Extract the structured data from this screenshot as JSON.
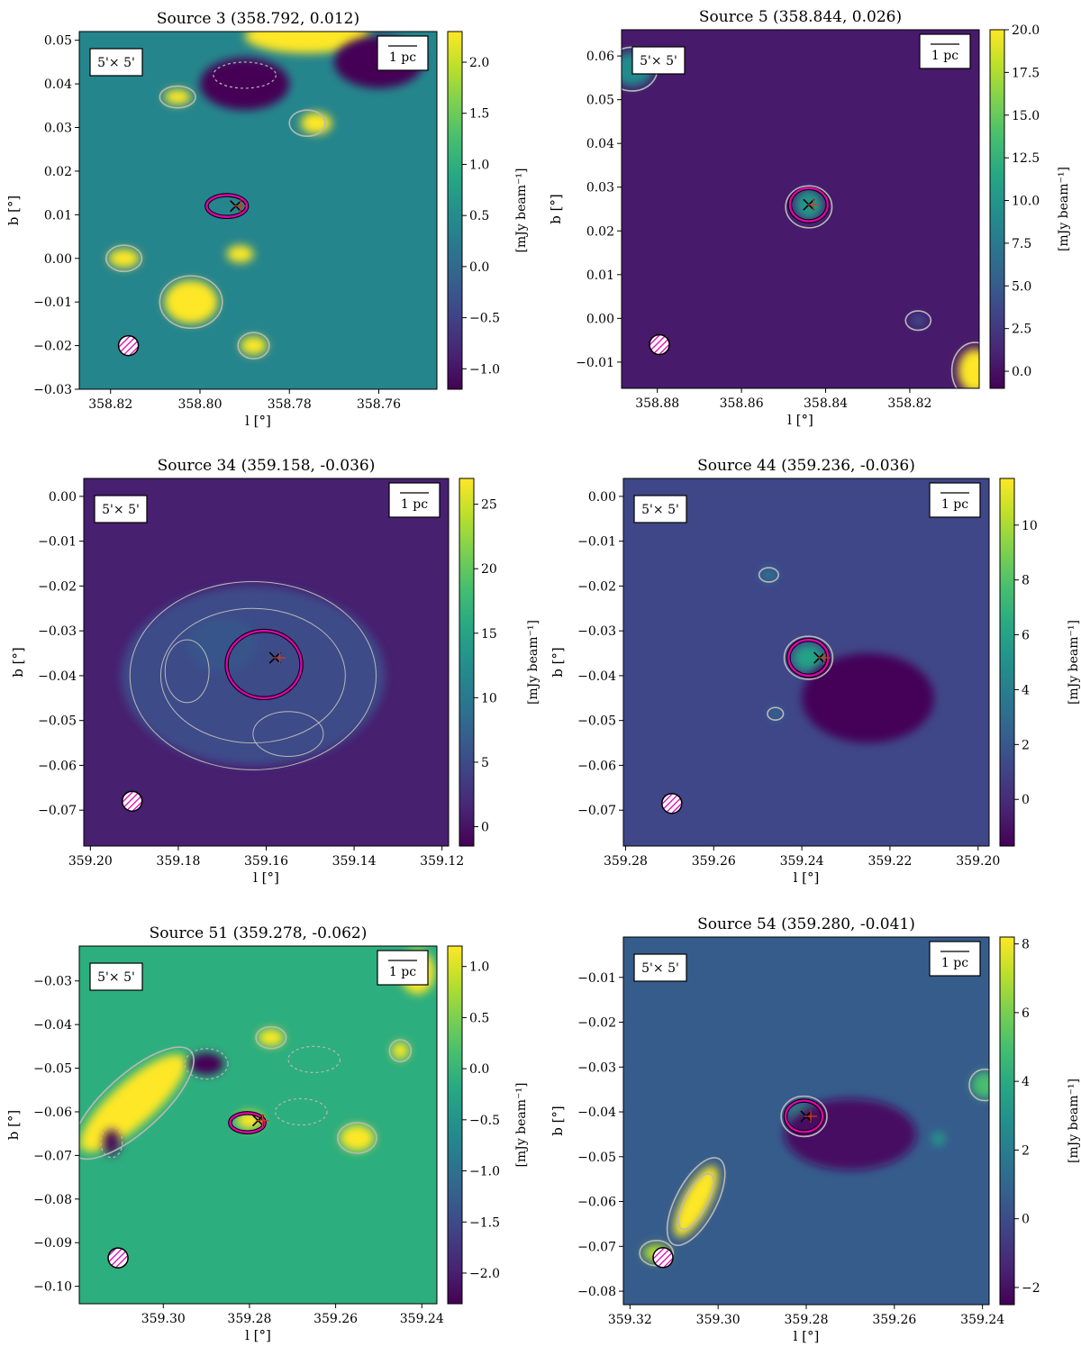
{
  "figure": {
    "colormap": "viridis",
    "contour_color": "#b8b8b8",
    "core_color": "#e000b0",
    "marker_color": "#000000"
  },
  "chart_data": [
    {
      "type": "heatmap",
      "title": "Source 3 (358.792, 0.012)",
      "xlabel": "l [°]",
      "ylabel": "b [°]",
      "xlim": [
        358.827,
        358.747
      ],
      "ylim": [
        -0.03,
        0.052
      ],
      "xticks": [
        "358.82",
        "358.80",
        "358.78",
        "358.76"
      ],
      "xtick_values": [
        358.82,
        358.8,
        358.78,
        358.76
      ],
      "yticks": [
        "0.05",
        "0.04",
        "0.03",
        "0.02",
        "0.01",
        "0.00",
        "−0.01",
        "−0.02",
        "−0.03"
      ],
      "ytick_values": [
        0.05,
        0.04,
        0.03,
        0.02,
        0.01,
        0.0,
        -0.01,
        -0.02,
        -0.03
      ],
      "colorbar": {
        "label": "[mJy beam⁻¹]",
        "range": [
          -1.2,
          2.3
        ],
        "ticks": [
          "−1.0",
          "−0.5",
          "0.0",
          "0.5",
          "1.0",
          "1.5",
          "2.0"
        ],
        "tick_values": [
          -1.0,
          -0.5,
          0.0,
          0.5,
          1.0,
          1.5,
          2.0
        ]
      },
      "background_level": 0.4,
      "field_label": "5'× 5'",
      "scalebar_label": "1 pc",
      "source_position": [
        358.792,
        0.012
      ],
      "blobs": [
        {
          "l": 358.776,
          "b": 0.051,
          "rl": 0.014,
          "rb": 0.004,
          "v": 3.0
        },
        {
          "l": 358.805,
          "b": 0.037,
          "rl": 0.003,
          "rb": 0.0018,
          "v": 2.4
        },
        {
          "l": 358.774,
          "b": 0.031,
          "rl": 0.0035,
          "rb": 0.0025,
          "v": 2.5
        },
        {
          "l": 358.817,
          "b": 0.0,
          "rl": 0.0035,
          "rb": 0.0022,
          "v": 2.4
        },
        {
          "l": 358.791,
          "b": 0.001,
          "rl": 0.003,
          "rb": 0.002,
          "v": 2.3
        },
        {
          "l": 358.802,
          "b": -0.01,
          "rl": 0.006,
          "rb": 0.005,
          "v": 3.2
        },
        {
          "l": 358.788,
          "b": -0.02,
          "rl": 0.003,
          "rb": 0.0022,
          "v": 2.4
        },
        {
          "l": 358.79,
          "b": 0.04,
          "rl": 0.01,
          "rb": 0.006,
          "v": -1.5
        },
        {
          "l": 358.76,
          "b": 0.045,
          "rl": 0.01,
          "rb": 0.006,
          "v": -1.3
        }
      ],
      "contours": [
        {
          "l": 358.794,
          "b": 0.012,
          "rl": 0.0045,
          "rb": 0.0025,
          "style": "core"
        },
        {
          "l": 358.776,
          "b": 0.031,
          "rl": 0.004,
          "rb": 0.003,
          "style": "solid"
        },
        {
          "l": 358.805,
          "b": 0.037,
          "rl": 0.004,
          "rb": 0.0025,
          "style": "solid"
        },
        {
          "l": 358.817,
          "b": 0.0,
          "rl": 0.004,
          "rb": 0.003,
          "style": "solid"
        },
        {
          "l": 358.802,
          "b": -0.01,
          "rl": 0.007,
          "rb": 0.006,
          "style": "solid"
        },
        {
          "l": 358.788,
          "b": -0.02,
          "rl": 0.0035,
          "rb": 0.003,
          "style": "solid"
        },
        {
          "l": 358.79,
          "b": 0.042,
          "rl": 0.007,
          "rb": 0.003,
          "style": "dashed"
        }
      ],
      "beam_position": [
        358.816,
        -0.02
      ]
    },
    {
      "type": "heatmap",
      "title": "Source 5 (358.844, 0.026)",
      "xlabel": "l [°]",
      "ylabel": "b [°]",
      "xlim": [
        358.8885,
        358.8035
      ],
      "ylim": [
        -0.016,
        0.066
      ],
      "xticks": [
        "358.88",
        "358.86",
        "358.84",
        "358.82"
      ],
      "xtick_values": [
        358.88,
        358.86,
        358.84,
        358.82
      ],
      "yticks": [
        "0.06",
        "0.05",
        "0.04",
        "0.03",
        "0.02",
        "0.01",
        "0.00",
        "−0.01"
      ],
      "ytick_values": [
        0.06,
        0.05,
        0.04,
        0.03,
        0.02,
        0.01,
        0.0,
        -0.01
      ],
      "colorbar": {
        "label": "[mJy beam⁻¹]",
        "range": [
          -1.0,
          20.0
        ],
        "ticks": [
          "0.0",
          "2.5",
          "5.0",
          "7.5",
          "10.0",
          "12.5",
          "15.0",
          "17.5",
          "20.0"
        ],
        "tick_values": [
          0.0,
          2.5,
          5.0,
          7.5,
          10.0,
          12.5,
          15.0,
          17.5,
          20.0
        ]
      },
      "background_level": 0.5,
      "field_label": "5'× 5'",
      "scalebar_label": "1 pc",
      "source_position": [
        358.844,
        0.026
      ],
      "blobs": [
        {
          "l": 358.844,
          "b": 0.026,
          "rl": 0.0035,
          "rb": 0.0035,
          "v": 10.0
        },
        {
          "l": 358.886,
          "b": 0.057,
          "rl": 0.005,
          "rb": 0.004,
          "v": 9.0
        },
        {
          "l": 358.8045,
          "b": -0.012,
          "rl": 0.004,
          "rb": 0.005,
          "v": 22.0
        },
        {
          "l": 358.818,
          "b": -0.0005,
          "rl": 0.002,
          "rb": 0.0015,
          "v": 4.0
        }
      ],
      "contours": [
        {
          "l": 358.844,
          "b": 0.026,
          "rl": 0.0045,
          "rb": 0.0038,
          "style": "core"
        },
        {
          "l": 358.844,
          "b": 0.0255,
          "rl": 0.0055,
          "rb": 0.0048,
          "style": "solid"
        },
        {
          "l": 358.818,
          "b": -0.0005,
          "rl": 0.003,
          "rb": 0.0022,
          "style": "solid"
        },
        {
          "l": 358.886,
          "b": 0.057,
          "rl": 0.006,
          "rb": 0.005,
          "style": "solid"
        },
        {
          "l": 358.8045,
          "b": -0.012,
          "rl": 0.0055,
          "rb": 0.0065,
          "style": "solid"
        }
      ],
      "beam_position": [
        358.8795,
        -0.006
      ]
    },
    {
      "type": "heatmap",
      "title": "Source 34 (359.158, -0.036)",
      "xlabel": "l [°]",
      "ylabel": "b [°]",
      "xlim": [
        359.2015,
        359.1185
      ],
      "ylim": [
        -0.078,
        0.004
      ],
      "xticks": [
        "359.20",
        "359.18",
        "359.16",
        "359.14",
        "359.12"
      ],
      "xtick_values": [
        359.2,
        359.18,
        359.16,
        359.14,
        359.12
      ],
      "yticks": [
        "0.00",
        "−0.01",
        "−0.02",
        "−0.03",
        "−0.04",
        "−0.05",
        "−0.06",
        "−0.07"
      ],
      "ytick_values": [
        0.0,
        -0.01,
        -0.02,
        -0.03,
        -0.04,
        -0.05,
        -0.06,
        -0.07
      ],
      "colorbar": {
        "label": "[mJy beam⁻¹]",
        "range": [
          -1.5,
          27.0
        ],
        "ticks": [
          "0",
          "5",
          "10",
          "15",
          "20",
          "25"
        ],
        "tick_values": [
          0,
          5,
          10,
          15,
          20,
          25
        ]
      },
      "background_level": 1.0,
      "field_label": "5'× 5'",
      "scalebar_label": "1 pc",
      "source_position": [
        359.158,
        -0.036
      ],
      "blobs": [
        {
          "l": 359.16,
          "b": -0.037,
          "rl": 0.007,
          "rb": 0.0065,
          "v": 13.0
        },
        {
          "l": 359.163,
          "b": -0.04,
          "rl": 0.03,
          "rb": 0.02,
          "v": 5.0
        },
        {
          "l": 359.17,
          "b": -0.033,
          "rl": 0.008,
          "rb": 0.006,
          "v": 6.0
        }
      ],
      "contours": [
        {
          "l": 359.1605,
          "b": -0.0375,
          "rl": 0.0085,
          "rb": 0.0075,
          "style": "core"
        },
        {
          "l": 359.163,
          "b": -0.04,
          "rl": 0.028,
          "rb": 0.021,
          "style": "thin"
        },
        {
          "l": 359.163,
          "b": -0.04,
          "rl": 0.021,
          "rb": 0.015,
          "style": "thin"
        },
        {
          "l": 359.155,
          "b": -0.053,
          "rl": 0.008,
          "rb": 0.005,
          "style": "thin"
        },
        {
          "l": 359.178,
          "b": -0.039,
          "rl": 0.005,
          "rb": 0.007,
          "style": "thin"
        }
      ],
      "beam_position": [
        359.1905,
        -0.068
      ]
    },
    {
      "type": "heatmap",
      "title": "Source 44 (359.236, -0.036)",
      "xlabel": "l [°]",
      "ylabel": "b [°]",
      "xlim": [
        359.2805,
        359.1975
      ],
      "ylim": [
        -0.078,
        0.004
      ],
      "xticks": [
        "359.28",
        "359.26",
        "359.24",
        "359.22",
        "359.20"
      ],
      "xtick_values": [
        359.28,
        359.26,
        359.24,
        359.22,
        359.2
      ],
      "yticks": [
        "0.00",
        "−0.01",
        "−0.02",
        "−0.03",
        "−0.04",
        "−0.05",
        "−0.06",
        "−0.07"
      ],
      "ytick_values": [
        0.0,
        -0.01,
        -0.02,
        -0.03,
        -0.04,
        -0.05,
        -0.06,
        -0.07
      ],
      "colorbar": {
        "label": "[mJy beam⁻¹]",
        "range": [
          -1.7,
          11.7
        ],
        "ticks": [
          "0",
          "2",
          "4",
          "6",
          "8",
          "10"
        ],
        "tick_values": [
          0,
          2,
          4,
          6,
          8,
          10
        ]
      },
      "background_level": 1.2,
      "field_label": "5'× 5'",
      "scalebar_label": "1 pc",
      "source_position": [
        359.236,
        -0.036
      ],
      "blobs": [
        {
          "l": 359.2385,
          "b": -0.036,
          "rl": 0.0035,
          "rb": 0.003,
          "v": 6.0
        },
        {
          "l": 359.2475,
          "b": -0.0175,
          "rl": 0.002,
          "rb": 0.0015,
          "v": 3.5
        },
        {
          "l": 359.246,
          "b": -0.0485,
          "rl": 0.0015,
          "rb": 0.0013,
          "v": 3.0
        },
        {
          "l": 359.225,
          "b": -0.045,
          "rl": 0.015,
          "rb": 0.01,
          "v": -1.5
        }
      ],
      "contours": [
        {
          "l": 359.2385,
          "b": -0.036,
          "rl": 0.0045,
          "rb": 0.004,
          "style": "core"
        },
        {
          "l": 359.2385,
          "b": -0.036,
          "rl": 0.0055,
          "rb": 0.0048,
          "style": "solid"
        },
        {
          "l": 359.2475,
          "b": -0.0175,
          "rl": 0.0022,
          "rb": 0.0016,
          "style": "solid"
        },
        {
          "l": 359.246,
          "b": -0.0485,
          "rl": 0.0018,
          "rb": 0.0014,
          "style": "solid"
        }
      ],
      "beam_position": [
        359.2695,
        -0.0685
      ]
    },
    {
      "type": "heatmap",
      "title": "Source 51 (359.278, -0.062)",
      "xlabel": "l [°]",
      "ylabel": "b [°]",
      "xlim": [
        359.3195,
        359.2365
      ],
      "ylim": [
        -0.104,
        -0.022
      ],
      "xticks": [
        "359.30",
        "359.28",
        "359.26",
        "359.24"
      ],
      "xtick_values": [
        359.3,
        359.28,
        359.26,
        359.24
      ],
      "yticks": [
        "−0.03",
        "−0.04",
        "−0.05",
        "−0.06",
        "−0.07",
        "−0.08",
        "−0.09",
        "−0.10"
      ],
      "ytick_values": [
        -0.03,
        -0.04,
        -0.05,
        -0.06,
        -0.07,
        -0.08,
        -0.09,
        -0.1
      ],
      "colorbar": {
        "label": "[mJy beam⁻¹]",
        "range": [
          -2.3,
          1.2
        ],
        "ticks": [
          "−2.0",
          "−1.5",
          "−1.0",
          "−0.5",
          "0.0",
          "0.5",
          "1.0"
        ],
        "tick_values": [
          -2.0,
          -1.5,
          -1.0,
          -0.5,
          0.0,
          0.5,
          1.0
        ]
      },
      "background_level": -0.1,
      "field_label": "5'× 5'",
      "scalebar_label": "1 pc",
      "source_position": [
        359.278,
        -0.062
      ],
      "blobs": [
        {
          "l": 359.307,
          "b": -0.058,
          "rl": 0.016,
          "rb": 0.005,
          "angle": -42,
          "v": 3.0
        },
        {
          "l": 359.275,
          "b": -0.043,
          "rl": 0.003,
          "rb": 0.002,
          "v": 2.2
        },
        {
          "l": 359.245,
          "b": -0.046,
          "rl": 0.002,
          "rb": 0.002,
          "v": 2.0
        },
        {
          "l": 359.241,
          "b": -0.028,
          "rl": 0.004,
          "rb": 0.005,
          "v": 2.4
        },
        {
          "l": 359.255,
          "b": -0.066,
          "rl": 0.004,
          "rb": 0.003,
          "v": 2.0
        },
        {
          "l": 359.29,
          "b": -0.049,
          "rl": 0.004,
          "rb": 0.0025,
          "v": -2.5
        },
        {
          "l": 359.312,
          "b": -0.067,
          "rl": 0.002,
          "rb": 0.003,
          "v": -2.2
        },
        {
          "l": 359.28,
          "b": -0.062,
          "rl": 0.003,
          "rb": 0.002,
          "v": 1.6
        }
      ],
      "contours": [
        {
          "l": 359.2805,
          "b": -0.0625,
          "rl": 0.004,
          "rb": 0.0022,
          "style": "core"
        },
        {
          "l": 359.307,
          "b": -0.058,
          "rl": 0.018,
          "rb": 0.0065,
          "angle": -42,
          "style": "solid"
        },
        {
          "l": 359.275,
          "b": -0.043,
          "rl": 0.0035,
          "rb": 0.0025,
          "style": "solid"
        },
        {
          "l": 359.245,
          "b": -0.046,
          "rl": 0.0025,
          "rb": 0.0025,
          "style": "solid"
        },
        {
          "l": 359.255,
          "b": -0.066,
          "rl": 0.0045,
          "rb": 0.0035,
          "style": "solid"
        },
        {
          "l": 359.29,
          "b": -0.049,
          "rl": 0.005,
          "rb": 0.0035,
          "style": "dashed"
        },
        {
          "l": 359.312,
          "b": -0.067,
          "rl": 0.0025,
          "rb": 0.0035,
          "style": "dashed"
        },
        {
          "l": 359.265,
          "b": -0.048,
          "rl": 0.006,
          "rb": 0.003,
          "style": "dashed"
        },
        {
          "l": 359.268,
          "b": -0.06,
          "rl": 0.006,
          "rb": 0.003,
          "style": "dashed"
        }
      ],
      "beam_position": [
        359.3105,
        -0.0935
      ]
    },
    {
      "type": "heatmap",
      "title": "Source 54 (359.280, -0.041)",
      "xlabel": "l [°]",
      "ylabel": "b [°]",
      "xlim": [
        359.3215,
        359.2385
      ],
      "ylim": [
        -0.083,
        -0.001
      ],
      "xticks": [
        "359.32",
        "359.30",
        "359.28",
        "359.26",
        "359.24"
      ],
      "xtick_values": [
        359.32,
        359.3,
        359.28,
        359.26,
        359.24
      ],
      "yticks": [
        "−0.01",
        "−0.02",
        "−0.03",
        "−0.04",
        "−0.05",
        "−0.06",
        "−0.07",
        "−0.08"
      ],
      "ytick_values": [
        -0.01,
        -0.02,
        -0.03,
        -0.04,
        -0.05,
        -0.06,
        -0.07,
        -0.08
      ],
      "colorbar": {
        "label": "[mJy beam⁻¹]",
        "range": [
          -2.5,
          8.2
        ],
        "ticks": [
          "−2",
          "0",
          "2",
          "4",
          "6",
          "8"
        ],
        "tick_values": [
          -2,
          0,
          2,
          4,
          6,
          8
        ]
      },
      "background_level": 0.6,
      "field_label": "5'× 5'",
      "scalebar_label": "1 pc",
      "source_position": [
        359.28,
        -0.041
      ],
      "blobs": [
        {
          "l": 359.2805,
          "b": -0.041,
          "rl": 0.003,
          "rb": 0.0025,
          "v": 4.0
        },
        {
          "l": 359.305,
          "b": -0.06,
          "rl": 0.009,
          "rb": 0.003,
          "angle": -62,
          "v": 8.5
        },
        {
          "l": 359.314,
          "b": -0.0715,
          "rl": 0.003,
          "rb": 0.002,
          "v": 7.0
        },
        {
          "l": 359.2395,
          "b": -0.034,
          "rl": 0.003,
          "rb": 0.003,
          "v": 5.0
        },
        {
          "l": 359.25,
          "b": -0.046,
          "rl": 0.0015,
          "rb": 0.0015,
          "v": 3.5
        },
        {
          "l": 359.27,
          "b": -0.045,
          "rl": 0.015,
          "rb": 0.008,
          "v": -2.0
        }
      ],
      "contours": [
        {
          "l": 359.2805,
          "b": -0.041,
          "rl": 0.0042,
          "rb": 0.0035,
          "style": "core"
        },
        {
          "l": 359.2805,
          "b": -0.041,
          "rl": 0.0052,
          "rb": 0.0045,
          "style": "solid"
        },
        {
          "l": 359.305,
          "b": -0.06,
          "rl": 0.011,
          "rb": 0.0045,
          "angle": -62,
          "style": "solid"
        },
        {
          "l": 359.305,
          "b": -0.06,
          "rl": 0.007,
          "rb": 0.0025,
          "angle": -62,
          "style": "solid"
        },
        {
          "l": 359.314,
          "b": -0.0715,
          "rl": 0.0038,
          "rb": 0.0028,
          "style": "solid"
        },
        {
          "l": 359.2395,
          "b": -0.034,
          "rl": 0.0035,
          "rb": 0.0035,
          "style": "solid"
        }
      ],
      "beam_position": [
        359.3125,
        -0.0725
      ]
    }
  ]
}
